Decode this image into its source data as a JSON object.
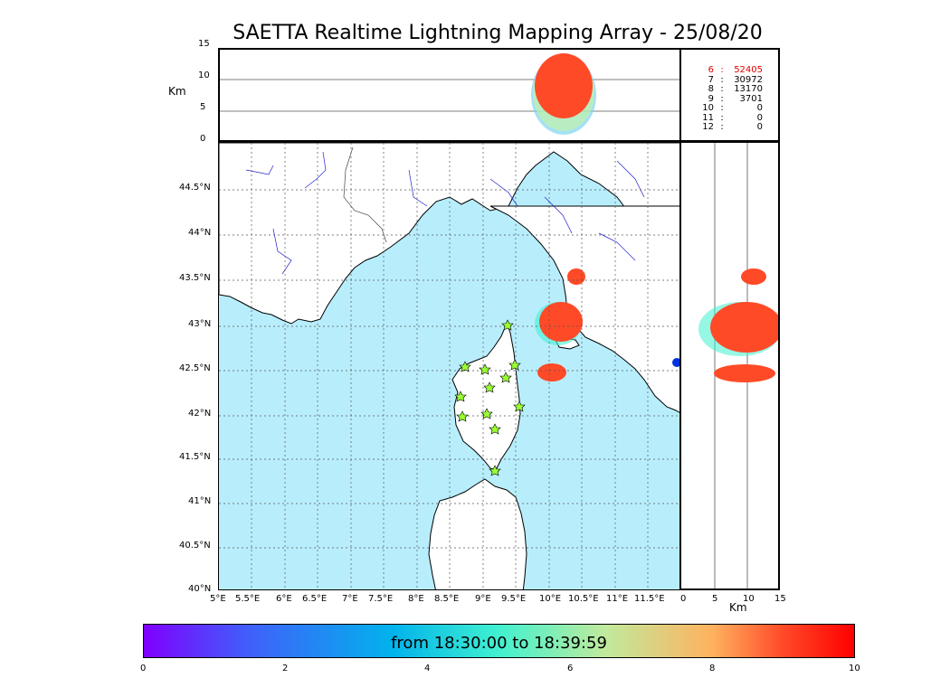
{
  "title": "SAETTA Realtime Lightning Mapping Array - 25/08/20",
  "units": {
    "top_ylabel": "Km",
    "side_xlabel": "Km"
  },
  "axes": {
    "alt_ticks": [
      "15",
      "10",
      "5",
      "0"
    ],
    "side_km_ticks": [
      "0",
      "5",
      "10",
      "15"
    ],
    "lat_ticks": [
      "44.5°N",
      "44°N",
      "43.5°N",
      "43°N",
      "42.5°N",
      "42°N",
      "41.5°N",
      "41°N",
      "40.5°N",
      "40°N"
    ],
    "lon_ticks": [
      "5°E",
      "5.5°E",
      "6°E",
      "6.5°E",
      "7°E",
      "7.5°E",
      "8°E",
      "8.5°E",
      "9°E",
      "9.5°E",
      "10°E",
      "10.5°E",
      "11°E",
      "11.5°E"
    ]
  },
  "counts": [
    {
      "level": "6",
      "sep": ":",
      "value": "52405"
    },
    {
      "level": "7",
      "sep": ":",
      "value": "30972"
    },
    {
      "level": "8",
      "sep": ":",
      "value": "13170"
    },
    {
      "level": "9",
      "sep": ":",
      "value": "3701"
    },
    {
      "level": "10",
      "sep": ":",
      "value": "0"
    },
    {
      "level": "11",
      "sep": ":",
      "value": "0"
    },
    {
      "level": "12",
      "sep": ":",
      "value": "0"
    }
  ],
  "colorbar": {
    "label": "from 18:30:00 to 18:39:59",
    "ticks": [
      "0",
      "2",
      "4",
      "6",
      "8",
      "10"
    ]
  },
  "colors": {
    "sea": "#b8eefc",
    "land": "#ffffff",
    "rivers": "#2020d0",
    "stations": "#99ff33",
    "flash_core": "#ff4a27"
  }
}
